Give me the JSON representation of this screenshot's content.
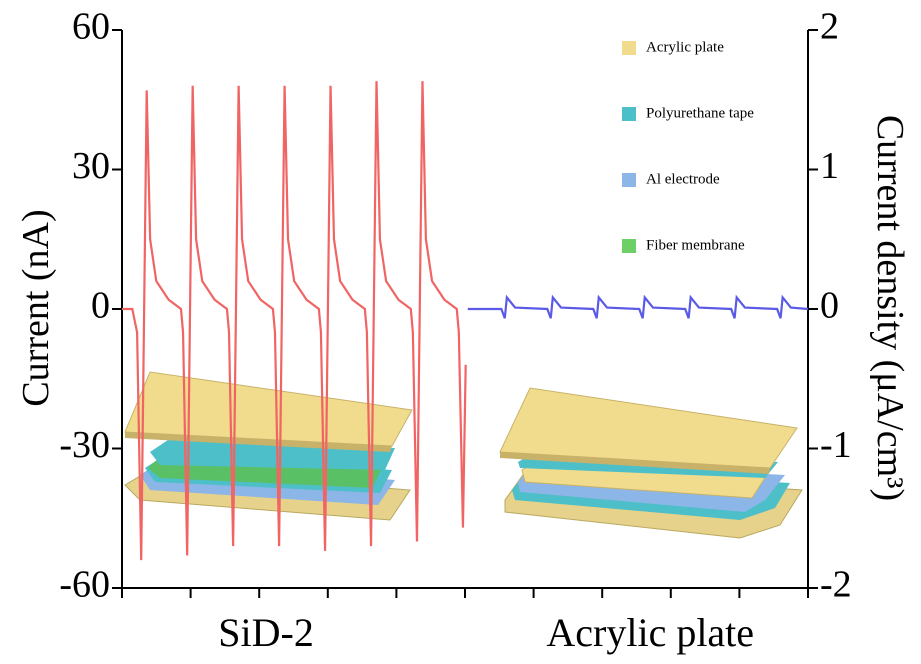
{
  "chart_data": {
    "type": "line",
    "y_label": "Current (nA)",
    "y2_label": "Current density (μA/cm³)",
    "categories": [
      "SiD-2",
      "Acrylic plate"
    ],
    "xlim": [
      0,
      10
    ],
    "xticks": [
      0,
      1,
      2,
      3,
      4,
      5,
      6,
      7,
      8,
      9,
      10
    ],
    "ylim": [
      -60,
      60
    ],
    "yticks": [
      60,
      30,
      0,
      -30,
      -60
    ],
    "y2lim": [
      -2,
      2
    ],
    "y2ticks": [
      2,
      1,
      0,
      -1,
      -2
    ],
    "series": [
      {
        "color": "#f06464",
        "x": [
          0,
          0.15,
          0.22,
          0.28,
          0.36,
          0.41,
          0.5,
          0.68,
          0.86,
          0.89,
          0.95,
          1.03,
          1.08,
          1.17,
          1.35,
          1.53,
          1.56,
          1.62,
          1.7,
          1.75,
          1.84,
          2.02,
          2.2,
          2.23,
          2.29,
          2.37,
          2.42,
          2.51,
          2.69,
          2.87,
          2.9,
          2.96,
          3.04,
          3.09,
          3.18,
          3.36,
          3.54,
          3.57,
          3.63,
          3.71,
          3.76,
          3.85,
          4.03,
          4.21,
          4.24,
          4.3,
          4.38,
          4.43,
          4.52,
          4.7,
          4.88,
          4.91,
          4.97,
          5.01
        ],
        "values": [
          0,
          0,
          -5,
          -54,
          47,
          15,
          6,
          2,
          0,
          -5,
          -53,
          48,
          15,
          6,
          2,
          0,
          -5,
          -51,
          48,
          15,
          6,
          2,
          0,
          -5,
          -51,
          48,
          15,
          6,
          2,
          0,
          -5,
          -52,
          48,
          15,
          6,
          2,
          0,
          -5,
          -51,
          49,
          15,
          6,
          2,
          0,
          -5,
          -50,
          49,
          15,
          6,
          2,
          0,
          -5,
          -47,
          -12
        ]
      },
      {
        "color": "#5a5ae6",
        "x": [
          5.04,
          5.53,
          5.58,
          5.61,
          5.73,
          6.2,
          6.25,
          6.28,
          6.4,
          6.87,
          6.92,
          6.95,
          7.07,
          7.54,
          7.59,
          7.62,
          7.74,
          8.21,
          8.26,
          8.29,
          8.41,
          8.88,
          8.93,
          8.96,
          9.08,
          9.55,
          9.6,
          9.63,
          9.75,
          10
        ],
        "values": [
          0,
          0,
          -2,
          2.5,
          0.3,
          0,
          -2,
          2.5,
          0.3,
          0,
          -2,
          2.5,
          0.3,
          0,
          -2,
          2.5,
          0.3,
          0,
          -2,
          2.5,
          0.3,
          0,
          -2,
          2.5,
          0.3,
          0,
          -2,
          2.5,
          0.3,
          0
        ]
      }
    ],
    "legend_items": [
      {
        "label": "Acrylic plate",
        "color": "#f0dc8c"
      },
      {
        "label": "Polyurethane tape",
        "color": "#4cbfc8"
      },
      {
        "label": "Al electrode",
        "color": "#8db6e8"
      },
      {
        "label": "Fiber membrane",
        "color": "#6cd066"
      }
    ]
  }
}
